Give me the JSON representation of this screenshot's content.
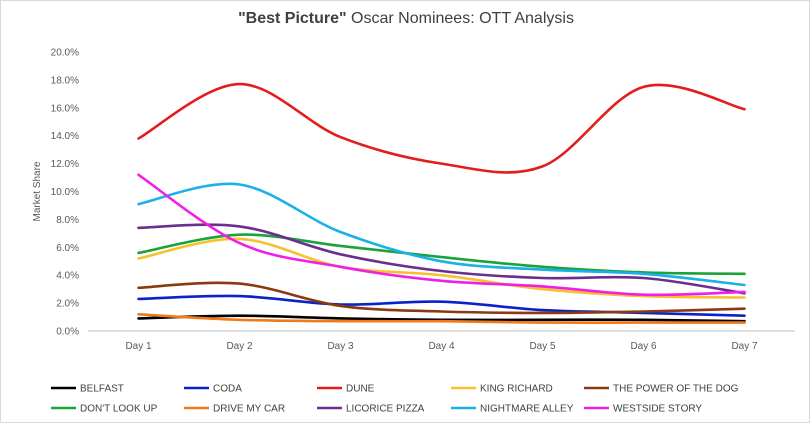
{
  "chart_data": {
    "type": "line",
    "title_bold": "\"Best Picture\"",
    "title_rest": " Oscar Nominees: OTT Analysis",
    "xlabel": "",
    "ylabel": "Market Share",
    "categories": [
      "Day 1",
      "Day 2",
      "Day 3",
      "Day 4",
      "Day 5",
      "Day 6",
      "Day 7"
    ],
    "ylim": [
      0,
      20
    ],
    "yticks": [
      "0.0%",
      "2.0%",
      "4.0%",
      "6.0%",
      "8.0%",
      "10.0%",
      "12.0%",
      "14.0%",
      "16.0%",
      "18.0%",
      "20.0%"
    ],
    "grid": false,
    "legend_position": "bottom",
    "series": [
      {
        "name": "BELFAST",
        "color": "#000000",
        "values": [
          0.9,
          1.1,
          0.9,
          0.8,
          0.8,
          0.8,
          0.7
        ]
      },
      {
        "name": "CODA",
        "color": "#0a23c8",
        "values": [
          2.3,
          2.5,
          1.9,
          2.1,
          1.5,
          1.3,
          1.1
        ]
      },
      {
        "name": "DUNE",
        "color": "#e41c1c",
        "values": [
          13.8,
          17.7,
          13.9,
          12.0,
          11.8,
          17.5,
          15.9
        ]
      },
      {
        "name": "KING RICHARD",
        "color": "#f8c12b",
        "values": [
          5.2,
          6.6,
          4.6,
          4.0,
          3.0,
          2.5,
          2.4
        ]
      },
      {
        "name": "THE POWER OF THE DOG",
        "color": "#8b3a0f",
        "values": [
          3.1,
          3.4,
          1.8,
          1.4,
          1.3,
          1.4,
          1.6
        ]
      },
      {
        "name": "DON'T LOOK UP",
        "color": "#1aa33a",
        "values": [
          5.6,
          6.9,
          6.1,
          5.3,
          4.6,
          4.2,
          4.1
        ]
      },
      {
        "name": "DRIVE MY CAR",
        "color": "#f07a1a",
        "values": [
          1.2,
          0.8,
          0.7,
          0.7,
          0.6,
          0.6,
          0.6
        ]
      },
      {
        "name": "LICORICE PIZZA",
        "color": "#6a2e8f",
        "values": [
          7.4,
          7.5,
          5.5,
          4.3,
          3.8,
          3.8,
          2.7
        ]
      },
      {
        "name": "NIGHTMARE ALLEY",
        "color": "#1ab1e8",
        "values": [
          9.1,
          10.5,
          7.1,
          5.0,
          4.4,
          4.1,
          3.3
        ]
      },
      {
        "name": "WESTSIDE STORY",
        "color": "#f01ee6",
        "values": [
          11.2,
          6.3,
          4.6,
          3.6,
          3.2,
          2.6,
          2.8
        ]
      }
    ]
  }
}
